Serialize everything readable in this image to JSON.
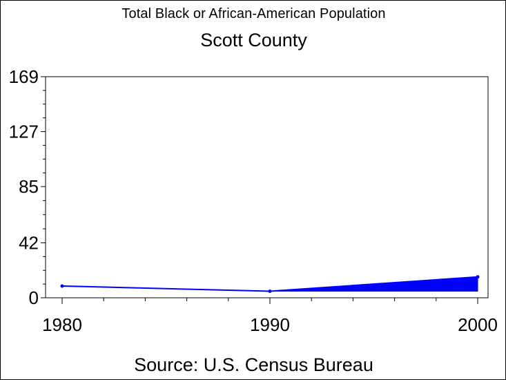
{
  "chart_data": {
    "type": "area",
    "title": "Total Black or African-American Population",
    "subtitle": "Scott County",
    "source": "Source: U.S. Census Bureau",
    "x": [
      1980,
      1990,
      2000
    ],
    "series": [
      {
        "values": [
          9,
          5,
          16
        ],
        "color": "#0000ff"
      }
    ],
    "area_baseline": [
      null,
      5,
      5
    ],
    "x_ticks": [
      "1980",
      "1990",
      "2000"
    ],
    "y_ticks": [
      "0",
      "42",
      "85",
      "127",
      "169"
    ],
    "ylim": [
      0,
      169
    ],
    "xlim": [
      1980,
      2000
    ],
    "grid": false,
    "legend": "none"
  }
}
